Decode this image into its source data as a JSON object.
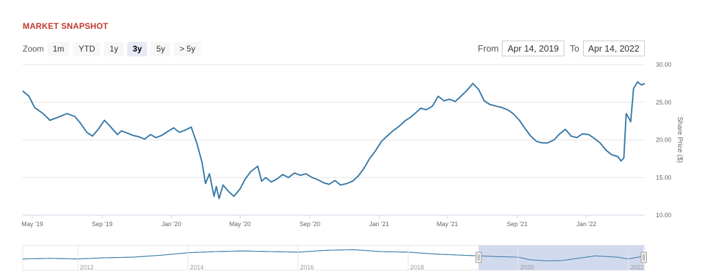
{
  "header": {
    "title": "MARKET SNAPSHOT"
  },
  "zoom": {
    "label": "Zoom",
    "buttons": [
      "1m",
      "YTD",
      "1y",
      "3y",
      "5y",
      "> 5y"
    ],
    "active": "3y"
  },
  "range": {
    "from_label": "From",
    "from_value": "Apr 14, 2019",
    "to_label": "To",
    "to_value": "Apr 14, 2022"
  },
  "colors": {
    "line": "#3a7aa8",
    "navigator_fill": "#c9d3ea",
    "title": "#c0392b"
  },
  "chart_data": {
    "type": "line",
    "title": "MARKET SNAPSHOT",
    "ylabel": "Share Price ($)",
    "ylim": [
      10,
      30
    ],
    "y_ticks": [
      "10.00",
      "15.00",
      "20.00",
      "25.00",
      "30.00"
    ],
    "x_ticks": [
      "May '19",
      "Sep '19",
      "Jan '20",
      "May '20",
      "Sep '20",
      "Jan '21",
      "May '21",
      "Sep '21",
      "Jan '22"
    ],
    "grid": true,
    "series": [
      {
        "x": [
          "2019-04-14",
          "2019-04-25",
          "2019-05-05",
          "2019-05-20",
          "2019-06-01",
          "2019-06-15",
          "2019-07-01",
          "2019-07-15",
          "2019-07-25",
          "2019-08-05",
          "2019-08-15",
          "2019-08-25",
          "2019-09-05",
          "2019-09-15",
          "2019-09-28",
          "2019-10-05",
          "2019-10-15",
          "2019-10-25",
          "2019-11-05",
          "2019-11-15",
          "2019-11-25",
          "2019-12-05",
          "2019-12-15",
          "2019-12-25",
          "2020-01-05",
          "2020-01-15",
          "2020-01-25",
          "2020-02-05",
          "2020-02-15",
          "2020-02-24",
          "2020-03-01",
          "2020-03-08",
          "2020-03-16",
          "2020-03-20",
          "2020-03-25",
          "2020-04-01",
          "2020-04-10",
          "2020-04-20",
          "2020-05-01",
          "2020-05-10",
          "2020-05-20",
          "2020-06-01",
          "2020-06-08",
          "2020-06-15",
          "2020-06-25",
          "2020-07-05",
          "2020-07-15",
          "2020-07-25",
          "2020-08-05",
          "2020-08-15",
          "2020-08-25",
          "2020-09-05",
          "2020-09-15",
          "2020-09-25",
          "2020-10-05",
          "2020-10-15",
          "2020-10-25",
          "2020-11-05",
          "2020-11-15",
          "2020-11-25",
          "2020-12-05",
          "2020-12-15",
          "2020-12-25",
          "2021-01-05",
          "2021-01-15",
          "2021-01-25",
          "2021-02-05",
          "2021-02-15",
          "2021-02-25",
          "2021-03-05",
          "2021-03-15",
          "2021-03-25",
          "2021-04-05",
          "2021-04-15",
          "2021-04-25",
          "2021-05-05",
          "2021-05-15",
          "2021-05-25",
          "2021-06-05",
          "2021-06-15",
          "2021-06-25",
          "2021-07-05",
          "2021-07-15",
          "2021-07-25",
          "2021-08-05",
          "2021-08-15",
          "2021-08-25",
          "2021-09-05",
          "2021-09-15",
          "2021-09-25",
          "2021-10-05",
          "2021-10-15",
          "2021-10-25",
          "2021-11-05",
          "2021-11-15",
          "2021-11-25",
          "2021-12-05",
          "2021-12-15",
          "2021-12-25",
          "2022-01-05",
          "2022-01-15",
          "2022-01-25",
          "2022-02-05",
          "2022-02-15",
          "2022-02-25",
          "2022-03-03",
          "2022-03-08",
          "2022-03-12",
          "2022-03-16",
          "2022-03-20",
          "2022-03-25",
          "2022-04-01",
          "2022-04-08",
          "2022-04-14"
        ],
        "y": [
          26.5,
          25.8,
          24.3,
          23.5,
          22.6,
          23.0,
          23.5,
          23.1,
          22.2,
          21.0,
          20.5,
          21.4,
          22.6,
          21.8,
          20.7,
          21.2,
          20.9,
          20.6,
          20.4,
          20.1,
          20.7,
          20.3,
          20.6,
          21.1,
          21.6,
          21.0,
          21.3,
          21.7,
          19.5,
          17.0,
          14.2,
          15.5,
          12.5,
          13.8,
          12.2,
          14.0,
          13.2,
          12.5,
          13.5,
          14.8,
          15.8,
          16.5,
          14.5,
          15.0,
          14.4,
          14.8,
          15.4,
          15.0,
          15.6,
          15.3,
          15.5,
          15.0,
          14.7,
          14.3,
          14.1,
          14.6,
          14.0,
          14.2,
          14.5,
          15.2,
          16.2,
          17.5,
          18.5,
          19.8,
          20.5,
          21.2,
          21.8,
          22.5,
          23.0,
          23.5,
          24.2,
          24.0,
          24.5,
          25.8,
          25.2,
          25.4,
          25.1,
          25.8,
          26.6,
          27.5,
          26.7,
          25.2,
          24.7,
          24.5,
          24.3,
          24.0,
          23.5,
          22.6,
          21.5,
          20.5,
          19.8,
          19.6,
          19.6,
          20.0,
          20.8,
          21.4,
          20.5,
          20.3,
          20.8,
          20.7,
          20.2,
          19.6,
          18.6,
          18.0,
          17.8,
          17.2,
          17.6,
          23.5,
          23.0,
          22.4,
          26.8,
          27.7,
          27.3,
          27.5
        ]
      }
    ],
    "navigator": {
      "x_ticks": [
        "2012",
        "2014",
        "2016",
        "2018",
        "2020",
        "2022"
      ],
      "x": [
        2011.0,
        2011.5,
        2012.0,
        2012.5,
        2013.0,
        2013.5,
        2014.0,
        2014.5,
        2015.0,
        2015.5,
        2016.0,
        2016.5,
        2017.0,
        2017.5,
        2018.0,
        2018.5,
        2019.0,
        2019.3,
        2019.6,
        2020.0,
        2020.2,
        2020.5,
        2020.8,
        2021.0,
        2021.4,
        2021.8,
        2022.0,
        2022.3
      ],
      "y": [
        19.0,
        19.5,
        19.0,
        20.0,
        20.5,
        22.0,
        24.0,
        25.0,
        25.5,
        25.0,
        24.5,
        26.0,
        26.5,
        25.0,
        24.5,
        23.0,
        22.0,
        21.5,
        21.0,
        20.5,
        18.5,
        17.5,
        17.8,
        19.0,
        21.5,
        20.5,
        19.0,
        21.5
      ],
      "selection": [
        "Apr 14, 2019",
        "Apr 14, 2022"
      ]
    }
  }
}
